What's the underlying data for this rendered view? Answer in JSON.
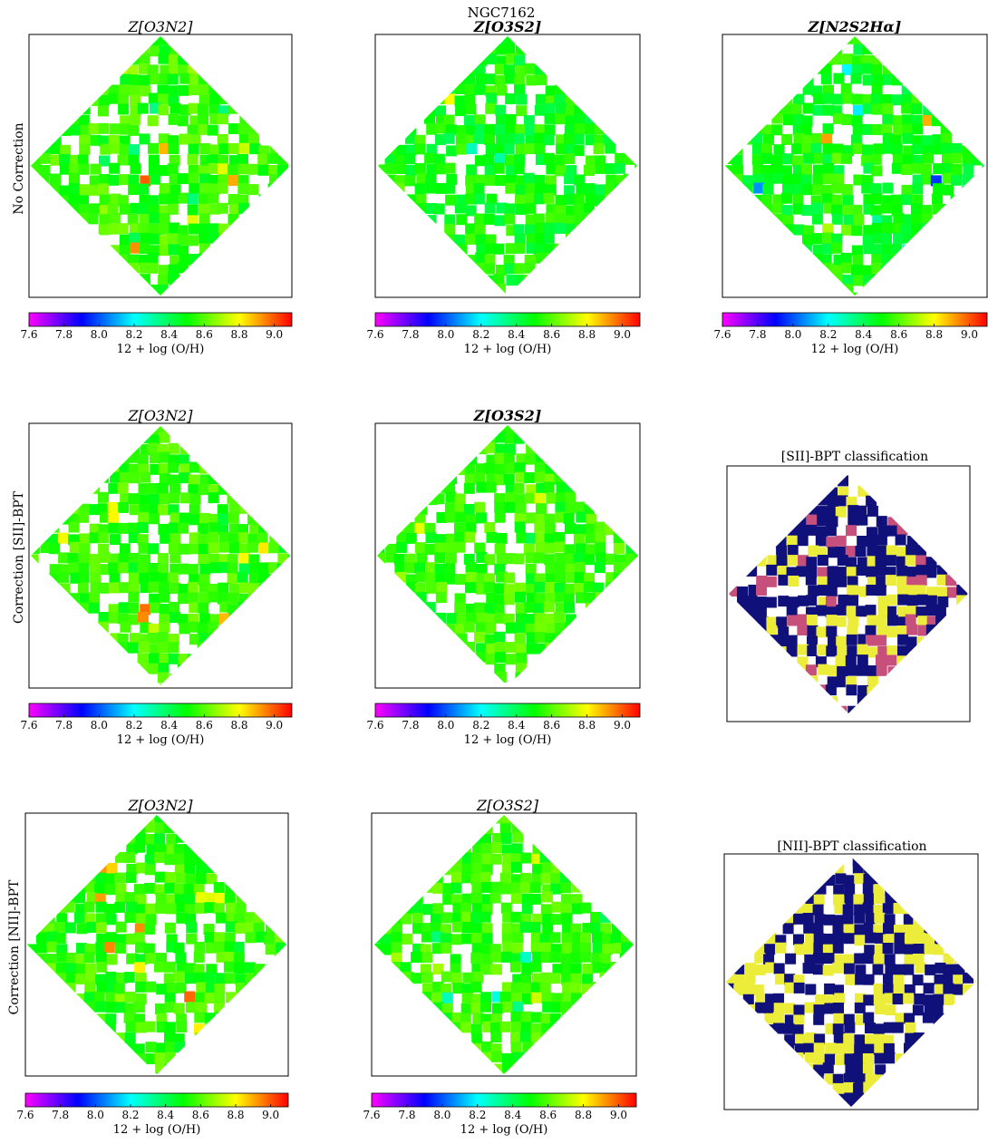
{
  "figure_title": "NGC7162",
  "colormap": {
    "label": "12 + log (O/H)",
    "ticks": [
      "7.6",
      "7.8",
      "8.0",
      "8.2",
      "8.4",
      "8.6",
      "8.8",
      "9.0"
    ],
    "range": [
      7.6,
      9.1
    ],
    "stops": [
      "#ff00ff",
      "#0000ff",
      "#00ffff",
      "#00ff00",
      "#ffff00",
      "#ff0000"
    ]
  },
  "rows": [
    {
      "label": "No Correction"
    },
    {
      "label": "Correction [SII]-BPT"
    },
    {
      "label": "Correction [NII]-BPT"
    }
  ],
  "panel_titles": {
    "o3n2": "Z[O3N2]",
    "o3s2": "Z[O3S2]",
    "n2s2ha": "Z[N2S2Hα]",
    "sii_bpt": "[SII]-BPT classification",
    "nii_bpt": "[NII]-BPT classification"
  },
  "class_colors": [
    "#10107a",
    "#ecec3a",
    "#c64f7c"
  ],
  "chart_data": [
    {
      "type": "heatmap",
      "row": "No Correction",
      "title": "Z[O3N2]",
      "cbar_label": "12 + log (O/H)",
      "value_range": [
        8.3,
        9.0
      ],
      "typical_value": 8.55,
      "quantity": "12 + log (O/H)"
    },
    {
      "type": "heatmap",
      "row": "No Correction",
      "title": "Z[O3S2]",
      "cbar_label": "12 + log (O/H)",
      "value_range": [
        8.0,
        8.8
      ],
      "typical_value": 8.5,
      "quantity": "12 + log (O/H)"
    },
    {
      "type": "heatmap",
      "row": "No Correction",
      "title": "Z[N2S2Hα]",
      "cbar_label": "12 + log (O/H)",
      "value_range": [
        7.9,
        9.0
      ],
      "typical_value": 8.5,
      "quantity": "12 + log (O/H)"
    },
    {
      "type": "heatmap",
      "row": "Correction [SII]-BPT",
      "title": "Z[O3N2]",
      "cbar_label": "12 + log (O/H)",
      "value_range": [
        8.4,
        9.0
      ],
      "typical_value": 8.55,
      "quantity": "12 + log (O/H)"
    },
    {
      "type": "heatmap",
      "row": "Correction [SII]-BPT",
      "title": "Z[O3S2]",
      "cbar_label": "12 + log (O/H)",
      "value_range": [
        8.4,
        8.8
      ],
      "typical_value": 8.55,
      "quantity": "12 + log (O/H)"
    },
    {
      "type": "heatmap",
      "row": "Correction [SII]-BPT",
      "title": "[SII]-BPT classification",
      "categorical": true
    },
    {
      "type": "heatmap",
      "row": "Correction [NII]-BPT",
      "title": "Z[O3N2]",
      "cbar_label": "12 + log (O/H)",
      "value_range": [
        8.4,
        9.0
      ],
      "typical_value": 8.55,
      "quantity": "12 + log (O/H)"
    },
    {
      "type": "heatmap",
      "row": "Correction [NII]-BPT",
      "title": "Z[O3S2]",
      "cbar_label": "12 + log (O/H)",
      "value_range": [
        8.2,
        8.8
      ],
      "typical_value": 8.55,
      "quantity": "12 + log (O/H)"
    },
    {
      "type": "heatmap",
      "row": "Correction [NII]-BPT",
      "title": "[NII]-BPT classification",
      "categorical": true
    }
  ]
}
